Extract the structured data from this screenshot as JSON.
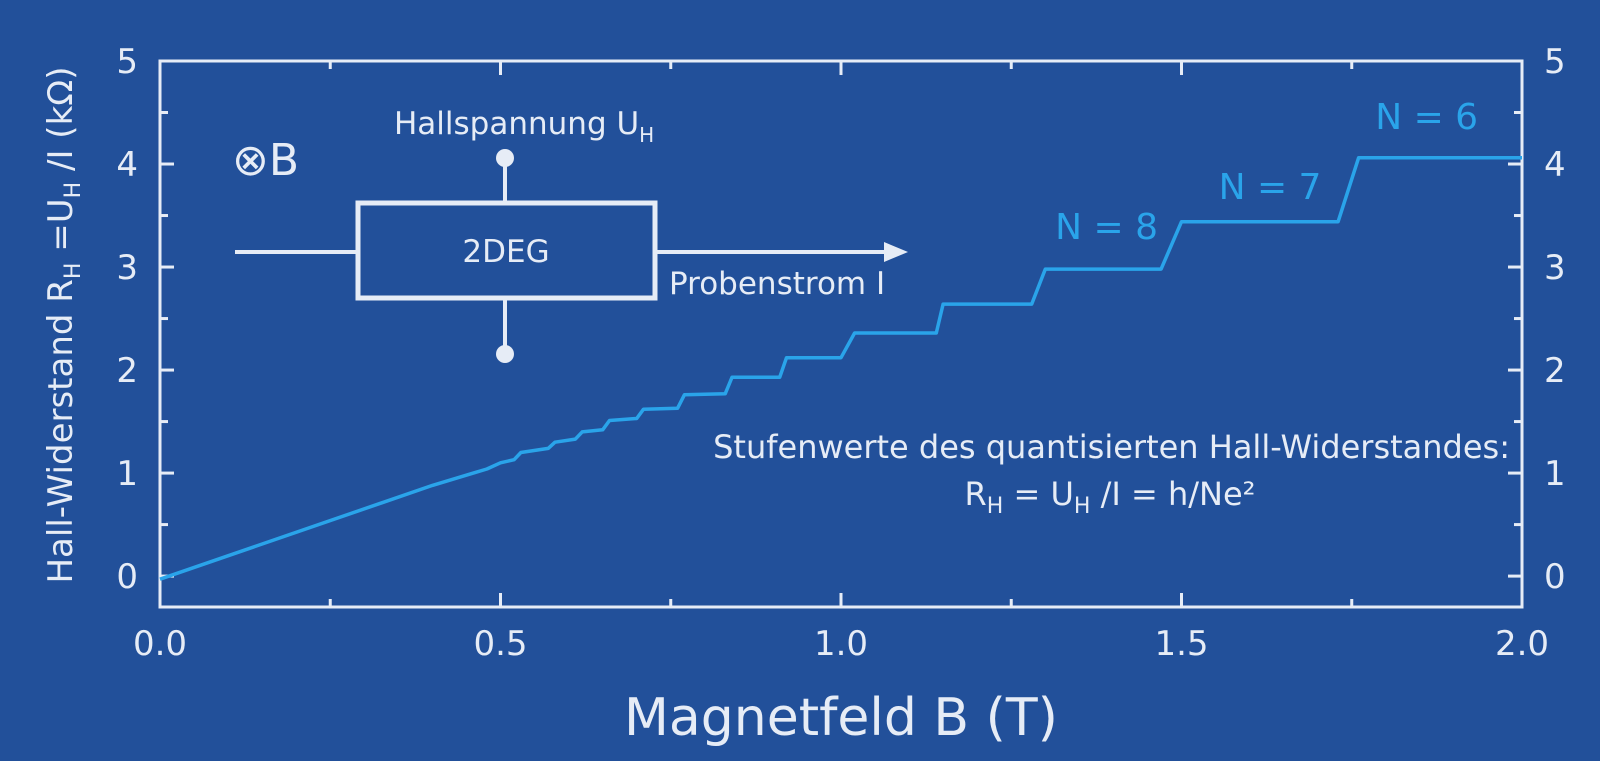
{
  "chart_data": {
    "type": "line",
    "xlabel": "Magnetfeld B (T)",
    "ylabel": {
      "prefix": "Hall-Widerstand R",
      "sub1": "H",
      "mid": " =U",
      "sub2": "H",
      "suffix": " /I  (kΩ)"
    },
    "xlim": [
      0.0,
      2.0
    ],
    "ylim": [
      -0.3,
      5.0
    ],
    "x_ticks": [
      "0.0",
      "0.5",
      "1.0",
      "1.5",
      "2.0"
    ],
    "y_ticks": [
      "0",
      "1",
      "2",
      "3",
      "4",
      "5"
    ],
    "grid": false,
    "series": [
      {
        "color": "#2aa4ea",
        "x": [
          0.0,
          0.4,
          0.46,
          0.48,
          0.5,
          0.52,
          0.53,
          0.57,
          0.58,
          0.61,
          0.62,
          0.65,
          0.66,
          0.7,
          0.71,
          0.76,
          0.77,
          0.83,
          0.84,
          0.91,
          0.92,
          1.0,
          1.02,
          1.14,
          1.15,
          1.28,
          1.3,
          1.47,
          1.5,
          1.73,
          1.76,
          2.0
        ],
        "y": [
          -0.03,
          0.88,
          1.0,
          1.04,
          1.1,
          1.13,
          1.2,
          1.24,
          1.3,
          1.33,
          1.4,
          1.42,
          1.51,
          1.53,
          1.62,
          1.63,
          1.76,
          1.77,
          1.93,
          1.93,
          2.12,
          2.12,
          2.36,
          2.36,
          2.64,
          2.64,
          2.98,
          2.98,
          3.44,
          3.44,
          4.06,
          4.06
        ]
      }
    ],
    "step_labels": [
      {
        "text": "N = 8",
        "x": 1.39,
        "y": 3.27
      },
      {
        "text": "N = 7",
        "x": 1.63,
        "y": 3.66
      },
      {
        "text": "N = 6",
        "x": 1.86,
        "y": 4.34
      }
    ]
  },
  "diagram": {
    "field": "⊗B",
    "box_label": "2DEG",
    "voltage_label": "Hallspannung U",
    "voltage_sub": "H",
    "current_label": "Probenstrom I"
  },
  "annotation": {
    "line1": "Stufenwerte des quantisierten Hall-Widerstandes:",
    "formula": {
      "a": "R",
      "a_sub": "H",
      "b": " = U",
      "b_sub": "H",
      "c": " /I = h/Ne²"
    }
  }
}
